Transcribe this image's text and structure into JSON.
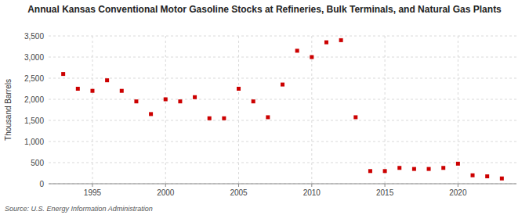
{
  "chart_data": {
    "type": "scatter",
    "title": "Annual Kansas Conventional Motor Gasoline Stocks at Refineries, Bulk Terminals, and Natural Gas Plants",
    "y_label": "Thousand Barrels",
    "source": "Source: U.S. Energy Information Administration",
    "color": "#cc0000",
    "marker": "square",
    "grid": true,
    "x": [
      1993,
      1994,
      1995,
      1996,
      1997,
      1998,
      1999,
      2000,
      2001,
      2002,
      2003,
      2004,
      2005,
      2006,
      2007,
      2008,
      2009,
      2010,
      2011,
      2012,
      2013,
      2014,
      2015,
      2016,
      2017,
      2018,
      2019,
      2020,
      2021,
      2022,
      2023
    ],
    "values": [
      2600,
      2250,
      2200,
      2450,
      2200,
      1950,
      1650,
      2000,
      1950,
      2050,
      1550,
      1550,
      2250,
      1950,
      1575,
      2350,
      3150,
      3000,
      3350,
      3400,
      1575,
      300,
      300,
      375,
      350,
      350,
      375,
      475,
      200,
      175,
      125
    ],
    "xlim": [
      1992,
      2024
    ],
    "xticks": [
      1995,
      2000,
      2005,
      2010,
      2015,
      2020
    ],
    "ylim": [
      0,
      3500
    ],
    "yticks": [
      0,
      500,
      {
        "value": 1000,
        "label": "1,000"
      },
      {
        "value": 1500,
        "label": "1,500"
      },
      {
        "value": 2000,
        "label": "2,000"
      },
      {
        "value": 2500,
        "label": "2,500"
      },
      {
        "value": 3000,
        "label": "3,000"
      },
      {
        "value": 3500,
        "label": "3,500"
      }
    ]
  }
}
